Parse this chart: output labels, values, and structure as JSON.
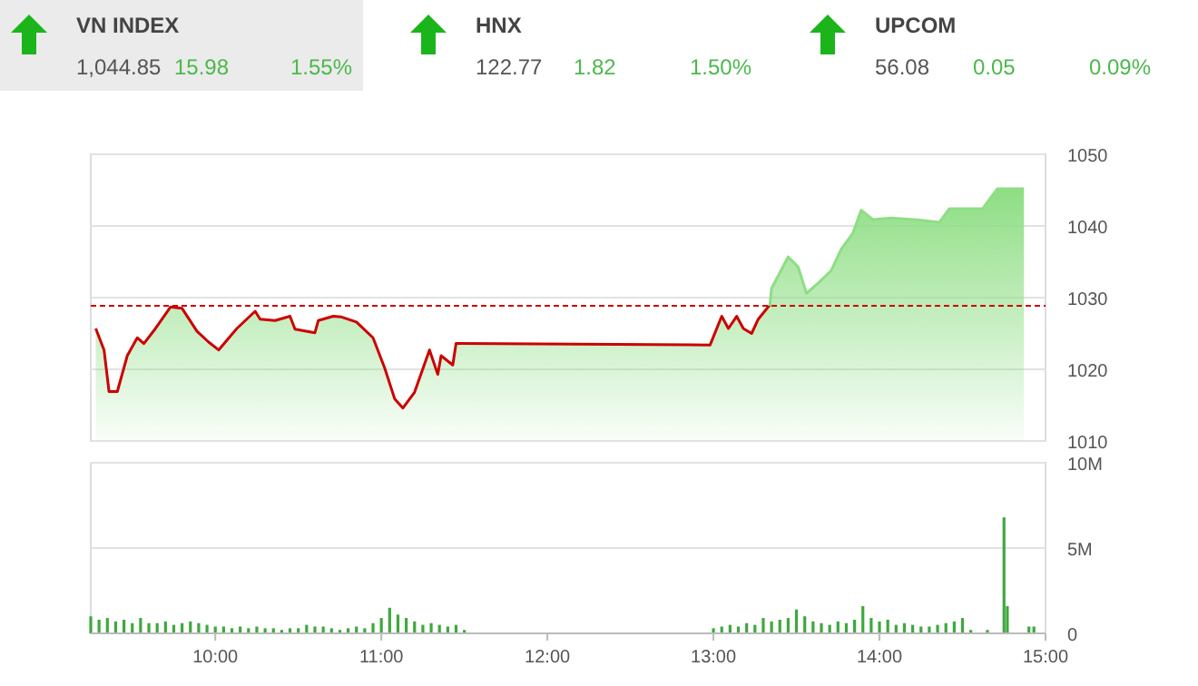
{
  "chart_data": [
    {
      "type": "other",
      "title": "VN INDEX",
      "annotations": [
        "1,044.85",
        "15.98",
        "1.55%"
      ]
    },
    {
      "type": "other",
      "title": "HNX",
      "annotations": [
        "122.77",
        "1.82",
        "1.50%"
      ]
    },
    {
      "type": "other",
      "title": "UPCOM",
      "annotations": [
        "56.08",
        "0.05",
        "0.09%"
      ]
    },
    {
      "type": "area",
      "x": [
        9.28,
        9.33,
        9.36,
        9.41,
        9.47,
        9.53,
        9.57,
        9.64,
        9.73,
        9.8,
        9.89,
        9.96,
        10.02,
        10.13,
        10.24,
        10.27,
        10.36,
        10.45,
        10.48,
        10.6,
        10.62,
        10.71,
        10.76,
        10.85,
        10.95,
        11.02,
        11.08,
        11.13,
        11.2,
        11.29,
        11.34,
        11.36,
        11.43,
        11.45,
        12.98,
        13.05,
        13.09,
        13.14,
        13.18,
        13.23,
        13.27,
        13.34,
        13.35,
        13.45,
        13.51,
        13.56,
        13.63,
        13.71,
        13.77,
        13.84,
        13.89,
        13.96,
        14.07,
        14.21,
        14.36,
        14.42,
        14.62,
        14.71,
        14.87
      ],
      "series": [
        {
          "color": "#8ede84",
          "values": [
            1025.7,
            1022.7,
            1016.9,
            1016.9,
            1021.9,
            1024.4,
            1023.6,
            1025.7,
            1028.7,
            1028.5,
            1025.3,
            1023.8,
            1022.7,
            1025.7,
            1028.1,
            1027,
            1026.8,
            1027.4,
            1025.6,
            1025.1,
            1026.8,
            1027.4,
            1027.3,
            1026.6,
            1024.4,
            1020.2,
            1015.9,
            1014.6,
            1016.8,
            1022.7,
            1019.3,
            1021.9,
            1020.6,
            1023.6,
            1023.4,
            1027.4,
            1025.7,
            1027.4,
            1025.7,
            1025,
            1027,
            1029,
            1031.3,
            1035.7,
            1034.3,
            1030.6,
            1032,
            1033.8,
            1036.8,
            1039,
            1042.2,
            1040.9,
            1041.1,
            1040.9,
            1040.5,
            1042.4,
            1042.4,
            1045.2,
            1045.2
          ]
        }
      ],
      "xlim": [
        9.25,
        15
      ],
      "ylim": [
        1010,
        1050
      ],
      "yticks": [
        1010,
        1020,
        1030,
        1040,
        1050
      ],
      "grid": "y",
      "tick_labels": "y",
      "ref_lines": [
        {
          "axis": "y",
          "value": 1028.87,
          "color": "#cc0000",
          "line_style": "dashed"
        }
      ]
    },
    {
      "type": "bar",
      "x": [
        9.25,
        9.3,
        9.35,
        9.4,
        9.45,
        9.5,
        9.55,
        9.6,
        9.65,
        9.7,
        9.75,
        9.8,
        9.85,
        9.9,
        9.95,
        10,
        10.05,
        10.1,
        10.15,
        10.2,
        10.25,
        10.3,
        10.35,
        10.4,
        10.45,
        10.5,
        10.55,
        10.6,
        10.65,
        10.7,
        10.75,
        10.8,
        10.85,
        10.9,
        10.95,
        11,
        11.05,
        11.1,
        11.15,
        11.2,
        11.25,
        11.3,
        11.35,
        11.4,
        11.45,
        11.5,
        13,
        13.05,
        13.1,
        13.15,
        13.2,
        13.25,
        13.3,
        13.35,
        13.4,
        13.45,
        13.5,
        13.55,
        13.6,
        13.65,
        13.7,
        13.75,
        13.8,
        13.85,
        13.9,
        13.95,
        14,
        14.05,
        14.1,
        14.15,
        14.2,
        14.25,
        14.3,
        14.35,
        14.4,
        14.45,
        14.5,
        14.55,
        14.65,
        14.75,
        14.77,
        14.9,
        14.93
      ],
      "series": [
        {
          "color": "#3fa83f",
          "values": [
            1,
            0.8,
            0.9,
            0.7,
            0.8,
            0.6,
            0.9,
            0.6,
            0.6,
            0.7,
            0.5,
            0.6,
            0.7,
            0.6,
            0.5,
            0.4,
            0.4,
            0.3,
            0.4,
            0.3,
            0.4,
            0.3,
            0.3,
            0.2,
            0.3,
            0.3,
            0.5,
            0.4,
            0.4,
            0.3,
            0.2,
            0.3,
            0.4,
            0.3,
            0.6,
            0.9,
            1.5,
            1.1,
            0.9,
            0.7,
            0.5,
            0.6,
            0.5,
            0.4,
            0.5,
            0.2,
            0.3,
            0.4,
            0.5,
            0.4,
            0.6,
            0.5,
            0.9,
            0.7,
            0.8,
            0.9,
            1.4,
            1,
            0.7,
            0.6,
            0.5,
            0.7,
            0.6,
            0.8,
            1.6,
            0.9,
            0.7,
            0.8,
            0.5,
            0.6,
            0.5,
            0.4,
            0.4,
            0.5,
            0.6,
            0.7,
            0.9,
            0.2,
            0.2,
            6.8,
            1.6,
            0.4,
            0.4
          ]
        }
      ],
      "xlim": [
        9.25,
        15
      ],
      "xticks": [
        {
          "value": 10,
          "label": "10:00"
        },
        {
          "value": 11,
          "label": "11:00"
        },
        {
          "value": 12,
          "label": "12:00"
        },
        {
          "value": 13,
          "label": "13:00"
        },
        {
          "value": 14,
          "label": "14:00"
        },
        {
          "value": 15,
          "label": "15:00"
        }
      ],
      "ylim": [
        0,
        10
      ],
      "yticks": [
        0,
        {
          "value": 5,
          "label": "5M"
        },
        {
          "value": 10,
          "label": "10M"
        }
      ],
      "grid": "y"
    }
  ]
}
